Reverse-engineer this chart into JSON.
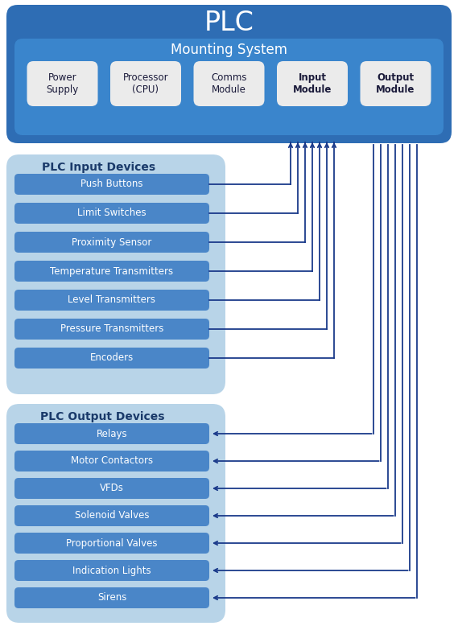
{
  "title": "PLC",
  "title_fontsize": 24,
  "title_color": "white",
  "bg_outer": "#2e6db4",
  "bg_mounting": "#3a85cc",
  "bg_input_group": "#b8d4e8",
  "bg_output_group": "#b8d4e8",
  "bg_white_box": "#ebebeb",
  "bg_blue_btn": "#4a86c8",
  "btn_text_color": "white",
  "group_title_color": "#1a3a6a",
  "line_color": "#1a3a8a",
  "mounting_label": "Mounting System",
  "mounting_fontsize": 12,
  "plc_boxes": [
    "Power\nSupply",
    "Processor\n(CPU)",
    "Comms\nModule",
    "Input\nModule",
    "Output\nModule"
  ],
  "plc_boxes_bold": [
    false,
    false,
    false,
    true,
    true
  ],
  "input_group_title": "PLC Input Devices",
  "input_devices": [
    "Push Buttons",
    "Limit Switches",
    "Proximity Sensor",
    "Temperature Transmitters",
    "Level Transmitters",
    "Pressure Transmitters",
    "Encoders"
  ],
  "output_group_title": "PLC Output Devices",
  "output_devices": [
    "Relays",
    "Motor Contactors",
    "VFDs",
    "Solenoid Valves",
    "Proportional Valves",
    "Indication Lights",
    "Sirens"
  ],
  "fig_width": 5.69,
  "fig_height": 7.83,
  "dpi": 100
}
